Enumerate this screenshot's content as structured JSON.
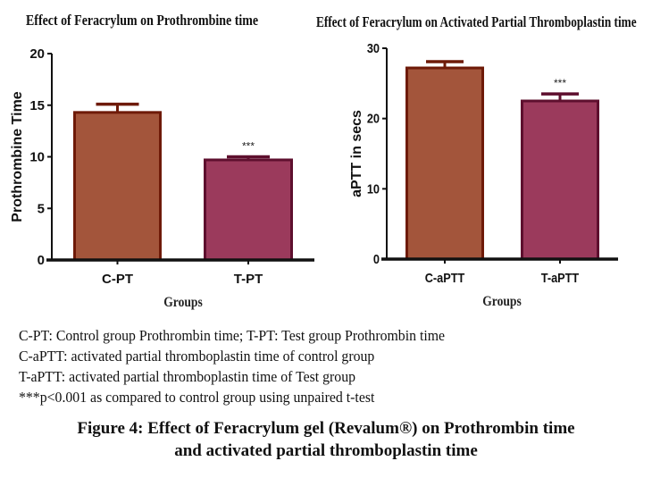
{
  "chart_data": [
    {
      "type": "bar",
      "title": "Effect of Feracrylum on Prothrombine time",
      "xlabel": "Groups",
      "ylabel": "Prothrombine Time",
      "categories": [
        "C-PT",
        "T-PT"
      ],
      "values": [
        14.3,
        9.7
      ],
      "error_upper": [
        15.1,
        10.0
      ],
      "significance": [
        "",
        "***"
      ],
      "ylim": [
        0,
        20
      ],
      "yticks": [
        0,
        5,
        10,
        15,
        20
      ],
      "ytick_labels": [
        "0",
        "5",
        "10",
        "15",
        "20"
      ],
      "grid": false,
      "colors": [
        "#a3553b",
        "#9b3a5c"
      ],
      "edge_colors": [
        "#6e1a08",
        "#5e0f2e"
      ]
    },
    {
      "type": "bar",
      "title": "Effect of Feracrylum on Activated Partial Thromboplastin time",
      "xlabel": "Groups",
      "ylabel": "aPTT  in secs",
      "categories": [
        "C-aPTT",
        "T-aPTT"
      ],
      "values": [
        27.2,
        22.5
      ],
      "error_upper": [
        28.1,
        23.5
      ],
      "significance": [
        "",
        "***"
      ],
      "ylim": [
        0,
        30
      ],
      "yticks": [
        0,
        10,
        20,
        30
      ],
      "ytick_labels": [
        "0",
        "10",
        "20",
        "30"
      ],
      "grid": false,
      "colors": [
        "#a3553b",
        "#9b3a5c"
      ],
      "edge_colors": [
        "#6e1a08",
        "#5e0f2e"
      ]
    }
  ],
  "notes": [
    "C-PT: Control group Prothrombin time; T-PT: Test group Prothrombin time",
    "C-aPTT: activated partial thromboplastin time of control group",
    "T-aPTT: activated partial thromboplastin time of Test group",
    "***p<0.001 as compared to control group using unpaired t-test"
  ],
  "caption": {
    "line1": "Figure 4: Effect of Feracrylum gel (Revalum®) on Prothrombin time",
    "line2": "and activated partial thromboplastin time"
  }
}
